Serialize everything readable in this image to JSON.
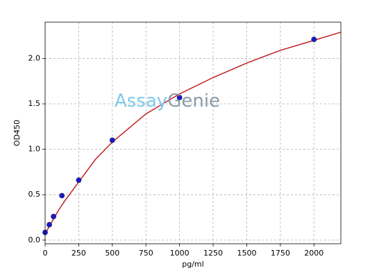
{
  "chart_data": {
    "type": "scatter",
    "x_label": "pg/ml",
    "y_label": "OD450",
    "watermark": [
      "Assay",
      "Genie"
    ],
    "xlim": [
      0,
      2200
    ],
    "ylim": [
      -0.04,
      2.4
    ],
    "xticks": [
      0,
      250,
      500,
      750,
      1000,
      1250,
      1500,
      1750,
      2000
    ],
    "yticks": [
      {
        "value": 0,
        "label": "0.0"
      },
      {
        "value": 0.5,
        "label": "0.5"
      },
      {
        "value": 1,
        "label": "1.0"
      },
      {
        "value": 1.5,
        "label": "1.5"
      },
      {
        "value": 2,
        "label": "2.0"
      }
    ],
    "grid": true,
    "series": [
      {
        "type": "scatter",
        "color": "#1a1acc",
        "x": [
          0,
          31.25,
          62.5,
          125,
          250,
          500,
          1000,
          2000
        ],
        "values": [
          0.085,
          0.17,
          0.26,
          0.49,
          0.66,
          1.1,
          1.57,
          2.21
        ]
      },
      {
        "type": "line",
        "color": "#c0201f",
        "x": [
          0,
          50,
          100,
          150,
          250,
          375,
          500,
          750,
          1000,
          1250,
          1500,
          1750,
          2000,
          2200
        ],
        "values": [
          0.07,
          0.2,
          0.33,
          0.44,
          0.64,
          0.89,
          1.08,
          1.39,
          1.61,
          1.79,
          1.95,
          2.09,
          2.2,
          2.29
        ]
      }
    ]
  }
}
